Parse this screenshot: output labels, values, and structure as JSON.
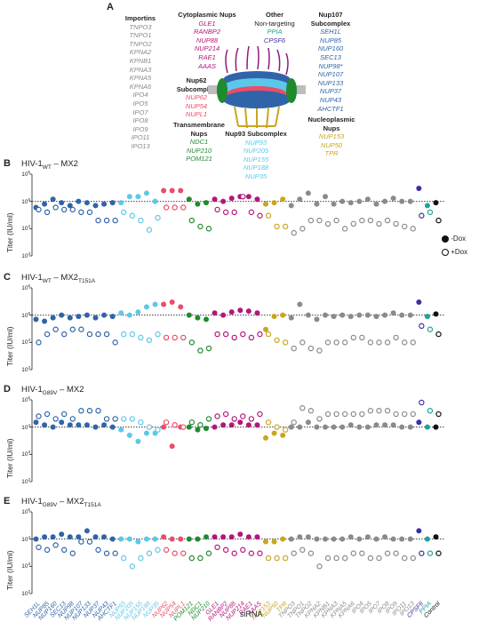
{
  "panelA": {
    "label": "A",
    "groups": [
      {
        "id": "importins",
        "title": "Importins",
        "items": [
          "TNPO3",
          "TNPO1",
          "TNPO2",
          "KPNA2",
          "KPNB1",
          "KPNA3",
          "KPNA5",
          "KPNA6",
          "IPO4",
          "IPO5",
          "IPO7",
          "IPO8",
          "IPO9",
          "IPO11",
          "IPO13"
        ],
        "color": "#8a8a8a"
      },
      {
        "id": "cyto",
        "title": "Cytoplasmic Nups",
        "items": [
          "GLE1",
          "RANBP2",
          "NUP88",
          "NUP214",
          "RAE1",
          "AAAS"
        ],
        "color": "#b5157b"
      },
      {
        "id": "other",
        "title": "Other",
        "subtitle": "Non-targeting",
        "items": [
          "PPIA",
          "CPSF6"
        ],
        "colors": [
          "#1aa59a",
          "#3b2fa0"
        ]
      },
      {
        "id": "nup107",
        "title": "Nup107 Subcomplex",
        "items": [
          "SEH1L",
          "NUP85",
          "NUP160",
          "SEC13",
          "NUP98*",
          "NUP107",
          "NUP133",
          "NUP37",
          "NUP43",
          "AHCTF1"
        ],
        "color": "#2f64a8"
      },
      {
        "id": "nup62",
        "title": "Nup62 Subcomplex",
        "items": [
          "NUP62",
          "NUP54",
          "NUPL1"
        ],
        "color": "#ea4d6a"
      },
      {
        "id": "trans",
        "title": "Transmembrane Nups",
        "items": [
          "NDC1",
          "NUP210",
          "POM121"
        ],
        "color": "#1f8a2e"
      },
      {
        "id": "nup93",
        "title": "Nup93 Subcomplex",
        "items": [
          "NUP93",
          "NUP205",
          "NUP155",
          "NUP188",
          "NUP35"
        ],
        "color": "#5bc8ea"
      },
      {
        "id": "nucleo",
        "title": "Nucleoplasmic Nups",
        "items": [
          "NUP153",
          "NUP50",
          "TPR"
        ],
        "color": "#c9a61e"
      }
    ]
  },
  "chart_data": {
    "type": "scatter",
    "ylabel": "Titer (IU/ml)",
    "xlabel": "siRNA",
    "legend": {
      "position": "right",
      "entries": [
        "-Dox",
        "+Dox"
      ]
    },
    "categories": [
      "SEH1L",
      "NUP85",
      "NUP160",
      "SEC13",
      "NUP98",
      "NUP107",
      "NUP133",
      "NUP37",
      "NUP43",
      "AHCTF1",
      "NUP93",
      "NUP205",
      "NUP155",
      "NUP188",
      "NUP35",
      "NUP62",
      "NUP54",
      "NUPL1",
      "POM121",
      "NDC1",
      "NUP210",
      "GLE1",
      "RANBP2",
      "NUP88",
      "NUP214",
      "RAE1",
      "AAAS",
      "NUP153",
      "NUP50",
      "TPR",
      "TNPO3",
      "TNPO1",
      "TNPO2",
      "KPNA2",
      "KPNB1",
      "KPNA3",
      "KPNA5",
      "KPNA6",
      "IPO4",
      "IPO5",
      "IPO7",
      "IPO8",
      "IPO9",
      "IPO11",
      "IPO13",
      "CPSF6",
      "PPIA",
      "Control"
    ],
    "category_colors": [
      "#2f64a8",
      "#2f64a8",
      "#2f64a8",
      "#2f64a8",
      "#2f64a8",
      "#2f64a8",
      "#2f64a8",
      "#2f64a8",
      "#2f64a8",
      "#2f64a8",
      "#5bc8ea",
      "#5bc8ea",
      "#5bc8ea",
      "#5bc8ea",
      "#5bc8ea",
      "#ea4d6a",
      "#ea4d6a",
      "#ea4d6a",
      "#1f8a2e",
      "#1f8a2e",
      "#1f8a2e",
      "#b5157b",
      "#b5157b",
      "#b5157b",
      "#b5157b",
      "#b5157b",
      "#b5157b",
      "#c9a61e",
      "#c9a61e",
      "#c9a61e",
      "#8a8a8a",
      "#8a8a8a",
      "#8a8a8a",
      "#8a8a8a",
      "#8a8a8a",
      "#8a8a8a",
      "#8a8a8a",
      "#8a8a8a",
      "#8a8a8a",
      "#8a8a8a",
      "#8a8a8a",
      "#8a8a8a",
      "#8a8a8a",
      "#8a8a8a",
      "#8a8a8a",
      "#3b2fa0",
      "#1aa59a",
      "#111111"
    ],
    "panels": [
      {
        "label": "B",
        "title_main": "HIV-1",
        "title_sub1": "WT",
        "title_mid": " – MX2",
        "title_sub2": "",
        "ylim": [
          1000,
          1000000
        ],
        "yticks": [
          {
            "text": "10",
            "exp": "6"
          },
          {
            "text": "10",
            "exp": "5"
          },
          {
            "text": "10",
            "exp": "4"
          },
          {
            "text": "10",
            "exp": "3"
          }
        ],
        "ref": 100000,
        "minus": [
          60000,
          80000,
          120000,
          90000,
          70000,
          100000,
          90000,
          70000,
          80000,
          90000,
          90000,
          150000,
          150000,
          200000,
          100000,
          250000,
          250000,
          250000,
          120000,
          80000,
          90000,
          120000,
          100000,
          130000,
          150000,
          150000,
          120000,
          80000,
          90000,
          120000,
          70000,
          120000,
          200000,
          80000,
          150000,
          80000,
          100000,
          90000,
          100000,
          120000,
          80000,
          100000,
          130000,
          100000,
          100000,
          300000,
          70000,
          90000
        ],
        "plus": [
          50000,
          40000,
          60000,
          50000,
          50000,
          40000,
          40000,
          20000,
          20000,
          20000,
          40000,
          30000,
          20000,
          9000,
          25000,
          60000,
          60000,
          60000,
          20000,
          12000,
          10000,
          50000,
          40000,
          40000,
          150000,
          40000,
          30000,
          30000,
          12000,
          12000,
          7000,
          10000,
          20000,
          20000,
          15000,
          20000,
          10000,
          15000,
          20000,
          20000,
          15000,
          20000,
          15000,
          12000,
          10000,
          30000,
          40000,
          20000
        ]
      },
      {
        "label": "C",
        "title_main": "HIV-1",
        "title_sub1": "WT",
        "title_mid": " – MX2",
        "title_sub2": "T151A",
        "ylim": [
          1000,
          1000000
        ],
        "yticks": [
          {
            "text": "10",
            "exp": "6"
          },
          {
            "text": "10",
            "exp": "5"
          },
          {
            "text": "10",
            "exp": "4"
          },
          {
            "text": "10",
            "exp": "3"
          }
        ],
        "ref": 100000,
        "minus": [
          70000,
          60000,
          80000,
          100000,
          80000,
          90000,
          100000,
          80000,
          100000,
          90000,
          120000,
          100000,
          130000,
          200000,
          250000,
          250000,
          300000,
          200000,
          100000,
          80000,
          70000,
          120000,
          100000,
          130000,
          150000,
          140000,
          120000,
          30000,
          90000,
          100000,
          80000,
          250000,
          100000,
          70000,
          100000,
          90000,
          100000,
          90000,
          100000,
          100000,
          90000,
          100000,
          120000,
          100000,
          100000,
          300000,
          90000,
          110000
        ],
        "plus": [
          10000,
          20000,
          30000,
          20000,
          30000,
          30000,
          20000,
          20000,
          20000,
          10000,
          20000,
          20000,
          15000,
          12000,
          20000,
          15000,
          15000,
          15000,
          10000,
          5000,
          6000,
          20000,
          20000,
          15000,
          20000,
          15000,
          20000,
          20000,
          12000,
          10000,
          6000,
          10000,
          6000,
          5000,
          10000,
          10000,
          10000,
          15000,
          15000,
          10000,
          10000,
          10000,
          15000,
          10000,
          10000,
          40000,
          30000,
          20000
        ]
      },
      {
        "label": "D",
        "title_main": "HIV-1",
        "title_sub1": "G89V",
        "title_mid": " – MX2",
        "title_sub2": "",
        "ylim": [
          100,
          100000
        ],
        "yticks": [
          {
            "text": "10",
            "exp": "5"
          },
          {
            "text": "10",
            "exp": "4"
          },
          {
            "text": "10",
            "exp": "3"
          },
          {
            "text": "10",
            "exp": "2"
          }
        ],
        "ref": 10000,
        "minus": [
          15000,
          12000,
          10000,
          15000,
          12000,
          12000,
          12000,
          10000,
          12000,
          10000,
          8000,
          5000,
          3000,
          6000,
          6000,
          10000,
          2000,
          10000,
          10000,
          8000,
          9000,
          10000,
          12000,
          12000,
          15000,
          12000,
          12000,
          4000,
          6000,
          5000,
          10000,
          10000,
          15000,
          10000,
          10000,
          10000,
          10000,
          12000,
          10000,
          10000,
          12000,
          12000,
          12000,
          10000,
          10000,
          15000,
          10000,
          10000
        ],
        "plus": [
          25000,
          30000,
          20000,
          30000,
          20000,
          40000,
          40000,
          40000,
          20000,
          20000,
          20000,
          20000,
          15000,
          10000,
          8000,
          15000,
          12000,
          10000,
          15000,
          12000,
          20000,
          25000,
          30000,
          20000,
          25000,
          20000,
          30000,
          15000,
          10000,
          8000,
          15000,
          50000,
          40000,
          20000,
          30000,
          30000,
          30000,
          30000,
          30000,
          40000,
          40000,
          40000,
          30000,
          30000,
          30000,
          80000,
          40000,
          30000
        ]
      },
      {
        "label": "E",
        "title_main": "HIV-1",
        "title_sub1": "G89V",
        "title_mid": " – MX2",
        "title_sub2": "T151A",
        "ylim": [
          100,
          100000
        ],
        "yticks": [
          {
            "text": "10",
            "exp": "5"
          },
          {
            "text": "10",
            "exp": "4"
          },
          {
            "text": "10",
            "exp": "3"
          },
          {
            "text": "10",
            "exp": "2"
          }
        ],
        "ref": 10000,
        "minus": [
          10000,
          12000,
          12000,
          15000,
          12000,
          12000,
          20000,
          12000,
          12000,
          10000,
          10000,
          10000,
          8000,
          10000,
          10000,
          12000,
          10000,
          10000,
          10000,
          10000,
          12000,
          12000,
          12000,
          12000,
          15000,
          12000,
          12000,
          8000,
          8000,
          10000,
          10000,
          12000,
          12000,
          10000,
          10000,
          10000,
          10000,
          12000,
          10000,
          12000,
          10000,
          12000,
          10000,
          10000,
          10000,
          20000,
          10000,
          12000
        ],
        "plus": [
          5000,
          4000,
          6000,
          4000,
          3000,
          8000,
          8000,
          4000,
          3000,
          3000,
          2000,
          1000,
          2000,
          3000,
          4000,
          4000,
          3000,
          3000,
          2000,
          2000,
          3000,
          5000,
          4000,
          3000,
          4000,
          3000,
          3000,
          2000,
          2000,
          2000,
          3000,
          4000,
          3000,
          1000,
          2000,
          2000,
          2000,
          3000,
          3000,
          2000,
          2000,
          3000,
          3000,
          2000,
          2000,
          3000,
          3000,
          3000
        ]
      }
    ]
  }
}
